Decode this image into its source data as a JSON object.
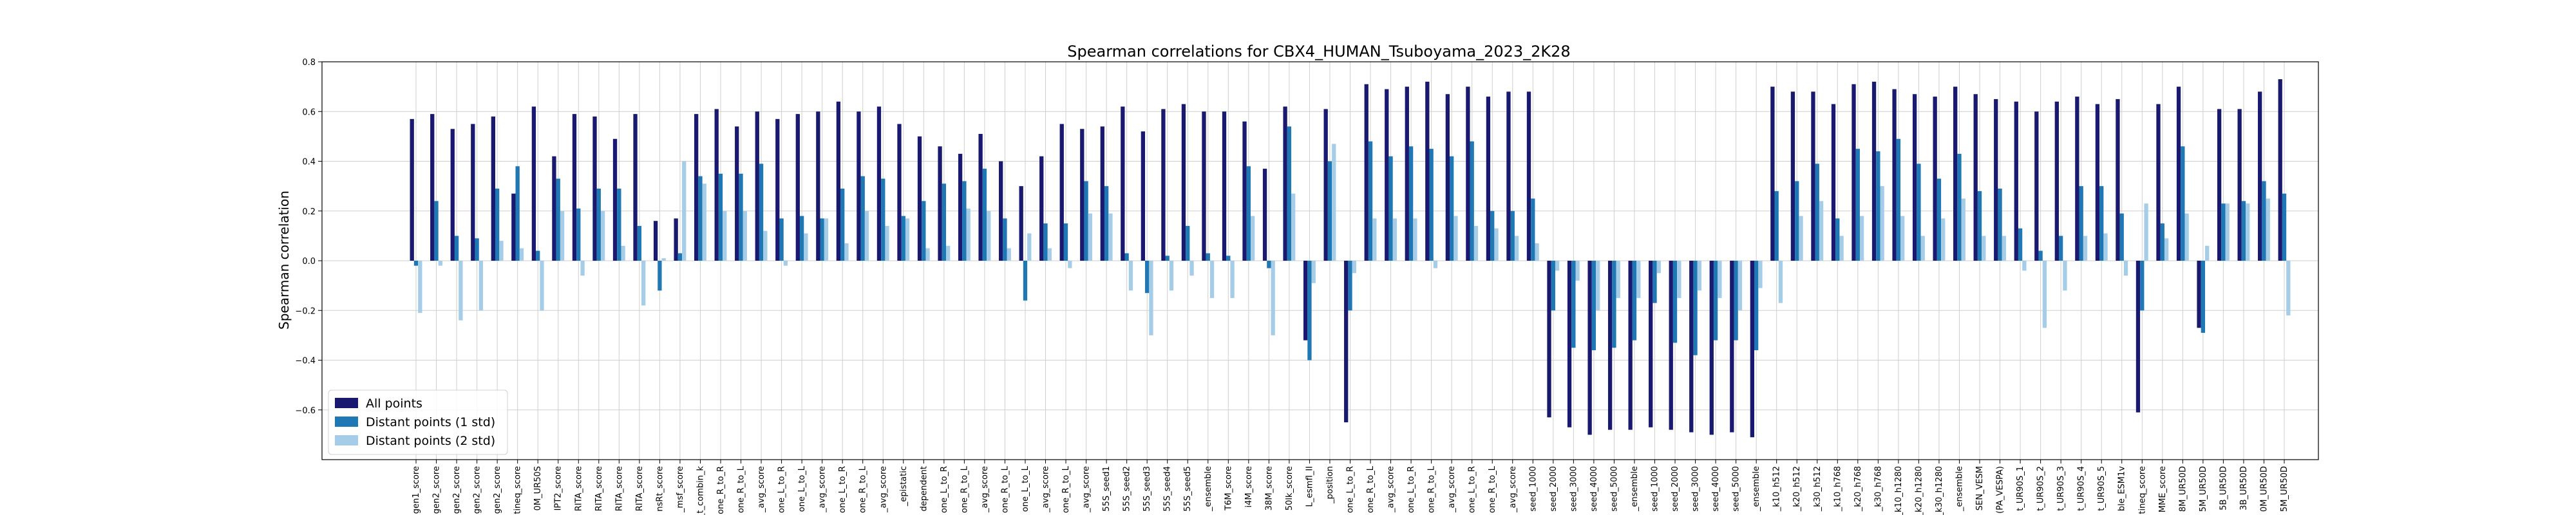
{
  "chart_data": {
    "type": "bar",
    "title": "Spearman correlations for CBX4_HUMAN_Tsuboyama_2023_2K28",
    "xlabel": "",
    "ylabel": "Spearman correlation",
    "ylim": [
      -0.8,
      0.8
    ],
    "yticks": [
      "−0.6",
      "−0.4",
      "−0.2",
      "0.0",
      "0.2",
      "0.4",
      "0.6",
      "0.8"
    ],
    "ytick_values": [
      -0.6,
      -0.4,
      -0.2,
      0.0,
      0.2,
      0.4,
      0.6,
      0.8
    ],
    "grid": true,
    "legend_position": "lower-left",
    "colors": [
      "#191970",
      "#1f77b4",
      "#a6cde8"
    ],
    "categories": [
      "gen1_score",
      "gen2_score",
      "gen2_score",
      "gen2_score",
      "gen2_score",
      "tineq_score",
      "0M_UR50S",
      "IPT2_score",
      "RITA_score",
      "RITA_score",
      "RITA_score",
      "RITA_score",
      "nsRt_score",
      "_msf_score",
      "_t_combin_k",
      "one_R_to_R",
      "one_R_to_L",
      "_avg_score",
      "one_L_to_R",
      "one_L_to_L",
      "_avg_score",
      "one_L_to_R",
      "one_R_to_L",
      "_avg_score",
      "_epistatic",
      "dependent",
      "one_L_to_R",
      "one_R_to_L",
      "_avg_score",
      "one_R_to_L",
      "one_L_to_L",
      "_avg_score",
      "one_R_to_L",
      "_avg_score",
      "55S_seed1",
      "55S_seed2",
      "55S_seed3",
      "55S_seed4",
      "55S_seed5",
      "_ensemble",
      "T6M_score",
      "i4M_score",
      "38M_score",
      "50lk_score",
      "L_esmfl_II",
      "_position",
      "one_L_to_R",
      "one_R_to_L",
      "_avg_score",
      "one_L_to_R",
      "one_R_to_L",
      "_avg_score",
      "one_L_to_R",
      "one_R_to_L",
      "_avg_score",
      "seed_1000",
      "seed_2000",
      "seed_3000",
      "seed_4000",
      "seed_5000",
      "_ensemble",
      "seed_1000",
      "seed_2000",
      "seed_3000",
      "seed_4000",
      "seed_5000",
      "_ensemble",
      "_k10_h512",
      "_k20_h512",
      "_k30_h512",
      "_k10_h768",
      "_k20_h768",
      "_k30_h768",
      "_k10_h1280",
      "_k20_h1280",
      "_k30_h1280",
      "_ensemble",
      "SEN_VESM",
      "(PA_VESPA)",
      "t_UR90S_1",
      "t_UR90S_2",
      "t_UR90S_3",
      "t_UR90S_4",
      "t_UR90S_5",
      "ble_ESM1v",
      "tineq_score",
      "MME_score",
      "8M_UR50D",
      "5M_UR50D",
      "5B_UR50D",
      "3B_UR50D",
      "0M_UR50D",
      "5M_UR50D"
    ],
    "series": [
      {
        "name": "All points",
        "values": [
          0.57,
          0.59,
          0.53,
          0.55,
          0.58,
          0.27,
          0.62,
          0.42,
          0.59,
          0.58,
          0.49,
          0.59,
          0.16,
          0.17,
          0.59,
          0.61,
          0.54,
          0.6,
          0.57,
          0.59,
          0.6,
          0.64,
          0.6,
          0.62,
          0.55,
          0.5,
          0.46,
          0.43,
          0.51,
          0.4,
          0.3,
          0.42,
          0.55,
          0.53,
          0.54,
          0.62,
          0.52,
          0.61,
          0.63,
          0.6,
          0.6,
          0.56,
          0.37,
          0.62,
          -0.32,
          0.61,
          -0.65,
          0.71,
          0.69,
          0.7,
          0.72,
          0.67,
          0.7,
          0.66,
          0.68,
          0.68,
          -0.63,
          -0.67,
          -0.7,
          -0.68,
          -0.68,
          -0.67,
          -0.68,
          -0.69,
          -0.7,
          -0.69,
          -0.71,
          0.7,
          0.68,
          0.68,
          0.63,
          0.71,
          0.72,
          0.69,
          0.67,
          0.66,
          0.7,
          0.67,
          0.65,
          0.64,
          0.6,
          0.64,
          0.66,
          0.63,
          0.65,
          -0.61,
          0.63,
          0.7,
          -0.27,
          0.61,
          0.61,
          0.68,
          0.73
        ]
      },
      {
        "name": "Distant points (1 std)",
        "values": [
          -0.02,
          0.24,
          0.1,
          0.09,
          0.29,
          0.38,
          0.04,
          0.33,
          0.21,
          0.29,
          0.29,
          0.14,
          -0.12,
          0.03,
          0.34,
          0.35,
          0.35,
          0.39,
          0.17,
          0.18,
          0.17,
          0.29,
          0.34,
          0.33,
          0.18,
          0.24,
          0.31,
          0.32,
          0.37,
          0.17,
          -0.16,
          0.15,
          0.15,
          0.32,
          0.3,
          0.03,
          -0.13,
          0.02,
          0.14,
          0.03,
          0.02,
          0.38,
          -0.03,
          0.54,
          -0.4,
          0.4,
          -0.2,
          0.48,
          0.42,
          0.46,
          0.45,
          0.42,
          0.48,
          0.2,
          0.2,
          0.25,
          -0.2,
          -0.35,
          -0.36,
          -0.35,
          -0.32,
          -0.17,
          -0.33,
          -0.38,
          -0.32,
          -0.32,
          -0.36,
          0.28,
          0.32,
          0.39,
          0.17,
          0.45,
          0.44,
          0.49,
          0.39,
          0.33,
          0.43,
          0.28,
          0.29,
          0.13,
          0.04,
          0.1,
          0.3,
          0.3,
          0.19,
          -0.2,
          0.15,
          0.46,
          -0.29,
          0.23,
          0.24,
          0.32,
          0.27
        ]
      },
      {
        "name": "Distant points (2 std)",
        "values": [
          -0.21,
          -0.02,
          -0.24,
          -0.2,
          0.08,
          0.05,
          -0.2,
          0.2,
          -0.06,
          0.2,
          0.06,
          -0.18,
          0.01,
          0.4,
          0.31,
          0.2,
          0.2,
          0.12,
          -0.02,
          0.11,
          0.17,
          0.07,
          0.2,
          0.14,
          0.17,
          0.05,
          0.06,
          0.21,
          0.2,
          0.05,
          0.11,
          0.05,
          -0.03,
          0.19,
          0.19,
          -0.12,
          -0.3,
          -0.12,
          -0.06,
          -0.15,
          -0.15,
          0.18,
          -0.3,
          0.27,
          -0.09,
          0.47,
          -0.05,
          0.17,
          0.17,
          0.17,
          -0.03,
          0.18,
          0.14,
          0.13,
          0.1,
          0.07,
          -0.04,
          -0.08,
          -0.2,
          -0.15,
          -0.15,
          -0.05,
          -0.15,
          -0.12,
          -0.15,
          -0.2,
          -0.11,
          -0.17,
          0.18,
          0.24,
          0.1,
          0.18,
          0.3,
          0.18,
          0.1,
          0.17,
          0.25,
          0.1,
          0.1,
          -0.04,
          -0.27,
          -0.12,
          0.1,
          0.11,
          -0.06,
          0.23,
          0.09,
          0.19,
          0.06,
          0.23,
          0.23,
          0.25,
          -0.22
        ]
      }
    ]
  }
}
